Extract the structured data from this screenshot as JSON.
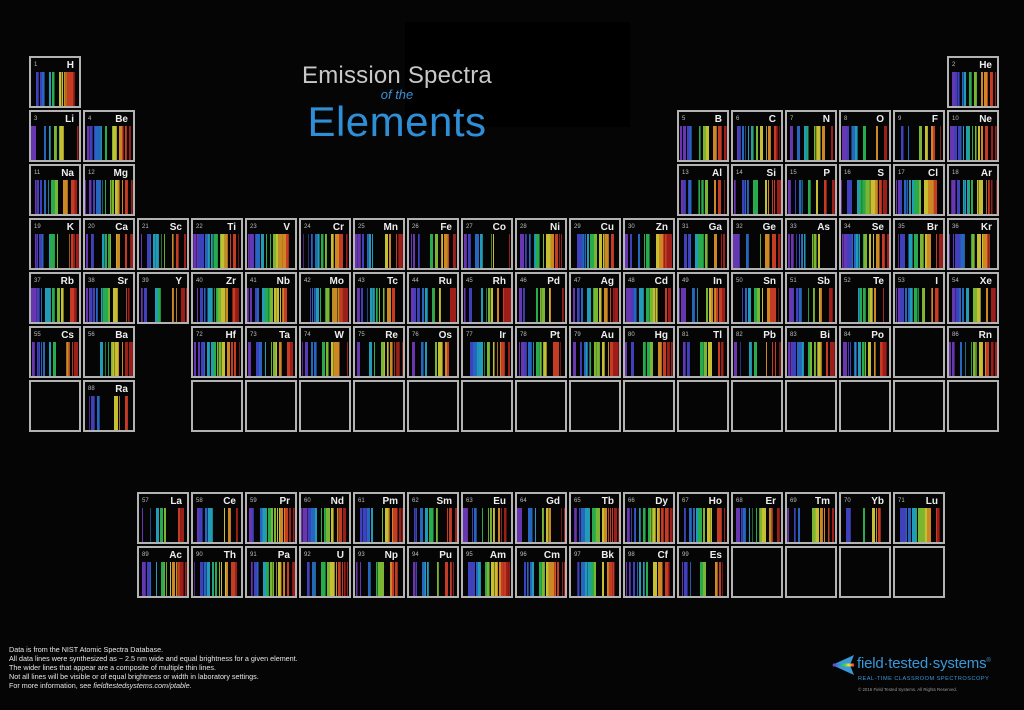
{
  "title": {
    "line1": "Emission Spectra",
    "line2": "of the",
    "line3": "Elements"
  },
  "elements": [
    {
      "n": "1",
      "s": "H",
      "r": 1,
      "c": 1
    },
    {
      "n": "2",
      "s": "He",
      "r": 1,
      "c": 18
    },
    {
      "n": "3",
      "s": "Li",
      "r": 2,
      "c": 1
    },
    {
      "n": "4",
      "s": "Be",
      "r": 2,
      "c": 2
    },
    {
      "n": "5",
      "s": "B",
      "r": 2,
      "c": 13
    },
    {
      "n": "6",
      "s": "C",
      "r": 2,
      "c": 14
    },
    {
      "n": "7",
      "s": "N",
      "r": 2,
      "c": 15
    },
    {
      "n": "8",
      "s": "O",
      "r": 2,
      "c": 16
    },
    {
      "n": "9",
      "s": "F",
      "r": 2,
      "c": 17
    },
    {
      "n": "10",
      "s": "Ne",
      "r": 2,
      "c": 18
    },
    {
      "n": "11",
      "s": "Na",
      "r": 3,
      "c": 1
    },
    {
      "n": "12",
      "s": "Mg",
      "r": 3,
      "c": 2
    },
    {
      "n": "13",
      "s": "Al",
      "r": 3,
      "c": 13
    },
    {
      "n": "14",
      "s": "Si",
      "r": 3,
      "c": 14
    },
    {
      "n": "15",
      "s": "P",
      "r": 3,
      "c": 15
    },
    {
      "n": "16",
      "s": "S",
      "r": 3,
      "c": 16
    },
    {
      "n": "17",
      "s": "Cl",
      "r": 3,
      "c": 17
    },
    {
      "n": "18",
      "s": "Ar",
      "r": 3,
      "c": 18
    },
    {
      "n": "19",
      "s": "K",
      "r": 4,
      "c": 1
    },
    {
      "n": "20",
      "s": "Ca",
      "r": 4,
      "c": 2
    },
    {
      "n": "21",
      "s": "Sc",
      "r": 4,
      "c": 3
    },
    {
      "n": "22",
      "s": "Ti",
      "r": 4,
      "c": 4
    },
    {
      "n": "23",
      "s": "V",
      "r": 4,
      "c": 5
    },
    {
      "n": "24",
      "s": "Cr",
      "r": 4,
      "c": 6
    },
    {
      "n": "25",
      "s": "Mn",
      "r": 4,
      "c": 7
    },
    {
      "n": "26",
      "s": "Fe",
      "r": 4,
      "c": 8
    },
    {
      "n": "27",
      "s": "Co",
      "r": 4,
      "c": 9
    },
    {
      "n": "28",
      "s": "Ni",
      "r": 4,
      "c": 10
    },
    {
      "n": "29",
      "s": "Cu",
      "r": 4,
      "c": 11
    },
    {
      "n": "30",
      "s": "Zn",
      "r": 4,
      "c": 12
    },
    {
      "n": "31",
      "s": "Ga",
      "r": 4,
      "c": 13
    },
    {
      "n": "32",
      "s": "Ge",
      "r": 4,
      "c": 14
    },
    {
      "n": "33",
      "s": "As",
      "r": 4,
      "c": 15
    },
    {
      "n": "34",
      "s": "Se",
      "r": 4,
      "c": 16
    },
    {
      "n": "35",
      "s": "Br",
      "r": 4,
      "c": 17
    },
    {
      "n": "36",
      "s": "Kr",
      "r": 4,
      "c": 18
    },
    {
      "n": "37",
      "s": "Rb",
      "r": 5,
      "c": 1
    },
    {
      "n": "38",
      "s": "Sr",
      "r": 5,
      "c": 2
    },
    {
      "n": "39",
      "s": "Y",
      "r": 5,
      "c": 3
    },
    {
      "n": "40",
      "s": "Zr",
      "r": 5,
      "c": 4
    },
    {
      "n": "41",
      "s": "Nb",
      "r": 5,
      "c": 5
    },
    {
      "n": "42",
      "s": "Mo",
      "r": 5,
      "c": 6
    },
    {
      "n": "43",
      "s": "Tc",
      "r": 5,
      "c": 7
    },
    {
      "n": "44",
      "s": "Ru",
      "r": 5,
      "c": 8
    },
    {
      "n": "45",
      "s": "Rh",
      "r": 5,
      "c": 9
    },
    {
      "n": "46",
      "s": "Pd",
      "r": 5,
      "c": 10
    },
    {
      "n": "47",
      "s": "Ag",
      "r": 5,
      "c": 11
    },
    {
      "n": "48",
      "s": "Cd",
      "r": 5,
      "c": 12
    },
    {
      "n": "49",
      "s": "In",
      "r": 5,
      "c": 13
    },
    {
      "n": "50",
      "s": "Sn",
      "r": 5,
      "c": 14
    },
    {
      "n": "51",
      "s": "Sb",
      "r": 5,
      "c": 15
    },
    {
      "n": "52",
      "s": "Te",
      "r": 5,
      "c": 16
    },
    {
      "n": "53",
      "s": "I",
      "r": 5,
      "c": 17
    },
    {
      "n": "54",
      "s": "Xe",
      "r": 5,
      "c": 18
    },
    {
      "n": "55",
      "s": "Cs",
      "r": 6,
      "c": 1
    },
    {
      "n": "56",
      "s": "Ba",
      "r": 6,
      "c": 2
    },
    {
      "n": "72",
      "s": "Hf",
      "r": 6,
      "c": 4
    },
    {
      "n": "73",
      "s": "Ta",
      "r": 6,
      "c": 5
    },
    {
      "n": "74",
      "s": "W",
      "r": 6,
      "c": 6
    },
    {
      "n": "75",
      "s": "Re",
      "r": 6,
      "c": 7
    },
    {
      "n": "76",
      "s": "Os",
      "r": 6,
      "c": 8
    },
    {
      "n": "77",
      "s": "Ir",
      "r": 6,
      "c": 9
    },
    {
      "n": "78",
      "s": "Pt",
      "r": 6,
      "c": 10
    },
    {
      "n": "79",
      "s": "Au",
      "r": 6,
      "c": 11
    },
    {
      "n": "80",
      "s": "Hg",
      "r": 6,
      "c": 12
    },
    {
      "n": "81",
      "s": "Tl",
      "r": 6,
      "c": 13
    },
    {
      "n": "82",
      "s": "Pb",
      "r": 6,
      "c": 14
    },
    {
      "n": "83",
      "s": "Bi",
      "r": 6,
      "c": 15
    },
    {
      "n": "84",
      "s": "Po",
      "r": 6,
      "c": 16
    },
    {
      "n": "",
      "s": "",
      "r": 6,
      "c": 17
    },
    {
      "n": "86",
      "s": "Rn",
      "r": 6,
      "c": 18
    },
    {
      "n": "",
      "s": "",
      "r": 7,
      "c": 1
    },
    {
      "n": "88",
      "s": "Ra",
      "r": 7,
      "c": 2
    },
    {
      "n": "",
      "s": "",
      "r": 7,
      "c": 4
    },
    {
      "n": "",
      "s": "",
      "r": 7,
      "c": 5
    },
    {
      "n": "",
      "s": "",
      "r": 7,
      "c": 6
    },
    {
      "n": "",
      "s": "",
      "r": 7,
      "c": 7
    },
    {
      "n": "",
      "s": "",
      "r": 7,
      "c": 8
    },
    {
      "n": "",
      "s": "",
      "r": 7,
      "c": 9
    },
    {
      "n": "",
      "s": "",
      "r": 7,
      "c": 10
    },
    {
      "n": "",
      "s": "",
      "r": 7,
      "c": 11
    },
    {
      "n": "",
      "s": "",
      "r": 7,
      "c": 12
    },
    {
      "n": "",
      "s": "",
      "r": 7,
      "c": 13
    },
    {
      "n": "",
      "s": "",
      "r": 7,
      "c": 14
    },
    {
      "n": "",
      "s": "",
      "r": 7,
      "c": 15
    },
    {
      "n": "",
      "s": "",
      "r": 7,
      "c": 16
    },
    {
      "n": "",
      "s": "",
      "r": 7,
      "c": 17
    },
    {
      "n": "",
      "s": "",
      "r": 7,
      "c": 18
    },
    {
      "n": "57",
      "s": "La",
      "r": 9,
      "c": 3
    },
    {
      "n": "58",
      "s": "Ce",
      "r": 9,
      "c": 4
    },
    {
      "n": "59",
      "s": "Pr",
      "r": 9,
      "c": 5
    },
    {
      "n": "60",
      "s": "Nd",
      "r": 9,
      "c": 6
    },
    {
      "n": "61",
      "s": "Pm",
      "r": 9,
      "c": 7
    },
    {
      "n": "62",
      "s": "Sm",
      "r": 9,
      "c": 8
    },
    {
      "n": "63",
      "s": "Eu",
      "r": 9,
      "c": 9
    },
    {
      "n": "64",
      "s": "Gd",
      "r": 9,
      "c": 10
    },
    {
      "n": "65",
      "s": "Tb",
      "r": 9,
      "c": 11
    },
    {
      "n": "66",
      "s": "Dy",
      "r": 9,
      "c": 12
    },
    {
      "n": "67",
      "s": "Ho",
      "r": 9,
      "c": 13
    },
    {
      "n": "68",
      "s": "Er",
      "r": 9,
      "c": 14
    },
    {
      "n": "69",
      "s": "Tm",
      "r": 9,
      "c": 15
    },
    {
      "n": "70",
      "s": "Yb",
      "r": 9,
      "c": 16
    },
    {
      "n": "71",
      "s": "Lu",
      "r": 9,
      "c": 17
    },
    {
      "n": "89",
      "s": "Ac",
      "r": 10,
      "c": 3
    },
    {
      "n": "90",
      "s": "Th",
      "r": 10,
      "c": 4
    },
    {
      "n": "91",
      "s": "Pa",
      "r": 10,
      "c": 5
    },
    {
      "n": "92",
      "s": "U",
      "r": 10,
      "c": 6
    },
    {
      "n": "93",
      "s": "Np",
      "r": 10,
      "c": 7
    },
    {
      "n": "94",
      "s": "Pu",
      "r": 10,
      "c": 8
    },
    {
      "n": "95",
      "s": "Am",
      "r": 10,
      "c": 9
    },
    {
      "n": "96",
      "s": "Cm",
      "r": 10,
      "c": 10
    },
    {
      "n": "97",
      "s": "Bk",
      "r": 10,
      "c": 11
    },
    {
      "n": "98",
      "s": "Cf",
      "r": 10,
      "c": 12
    },
    {
      "n": "99",
      "s": "Es",
      "r": 10,
      "c": 13
    },
    {
      "n": "",
      "s": "",
      "r": 10,
      "c": 14
    },
    {
      "n": "",
      "s": "",
      "r": 10,
      "c": 15
    },
    {
      "n": "",
      "s": "",
      "r": 10,
      "c": 16
    },
    {
      "n": "",
      "s": "",
      "r": 10,
      "c": 17
    }
  ],
  "footnote": {
    "line1": "Data is from the NIST Atomic Spectra Database.",
    "line2": "All data lines were synthesized as ~ 2.5 nm wide and equal brightness for a given element.",
    "line3": "The wider lines that appear are a composite of multiple thin lines.",
    "line4": "Not all lines will be visible or of equal brightness or width in laboratory settings.",
    "line5_prefix": "For more information, see ",
    "line5_link": "fieldtestedsystems.com/ptable",
    "line5_suffix": "."
  },
  "logo": {
    "name": "field·tested·systems",
    "trademark": "®",
    "tagline": "REAL-TIME CLASSROOM SPECTROSCOPY",
    "copyright": "© 2016 Field Tested Systems. All Rights Reserved."
  },
  "colors": {
    "accent": "#2e8ed6",
    "cell_border": "#b3b3b3",
    "background": "#050506"
  }
}
